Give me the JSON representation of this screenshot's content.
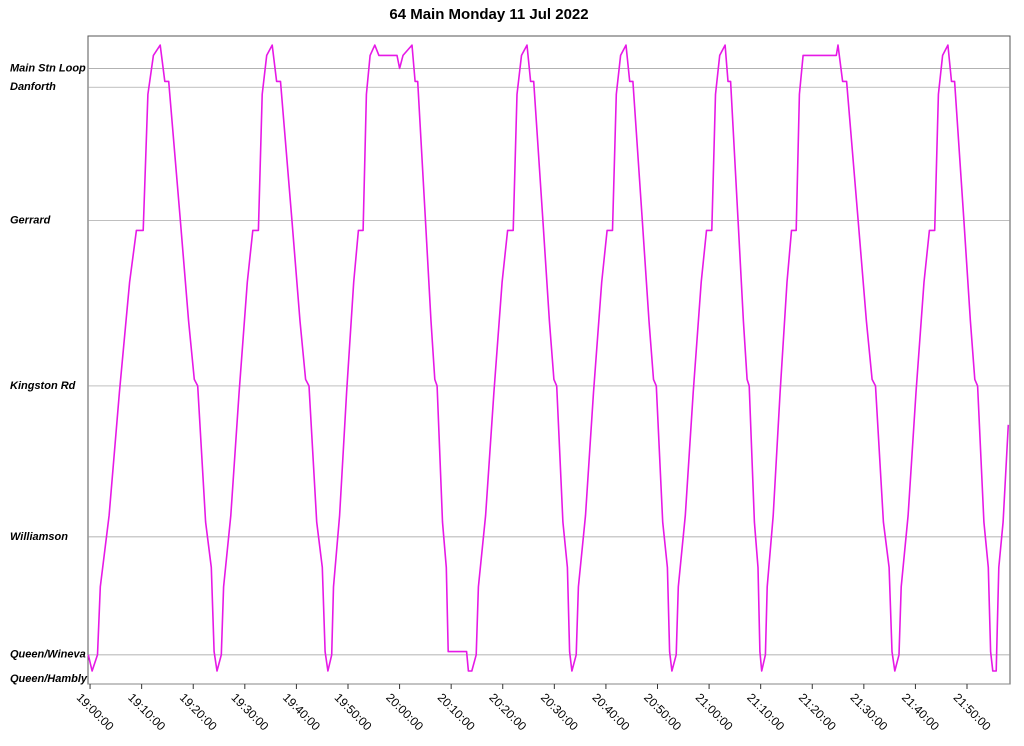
{
  "chart_data": {
    "type": "line",
    "title": "64 Main Monday 11 Jul 2022",
    "color": "#e619e6",
    "grid": true,
    "x": [
      "18:59:40",
      "19:00:24",
      "19:01:27",
      "19:01:59",
      "19:03:42",
      "19:05:41",
      "19:07:40",
      "19:08:59",
      "19:10:18",
      "19:11:13",
      "19:12:17",
      "19:13:36",
      "19:14:29",
      "19:15:15",
      "19:17:27",
      "19:19:06",
      "19:20:12",
      "19:20:52",
      "19:22:24",
      "19:23:30",
      "19:24:03",
      "19:24:36",
      "19:25:27",
      "19:25:53",
      "19:27:17",
      "19:28:53",
      "19:30:29",
      "19:31:33",
      "19:32:38",
      "19:33:22",
      "19:34:14",
      "19:35:18",
      "19:36:10",
      "19:36:55",
      "19:39:05",
      "19:40:42",
      "19:41:47",
      "19:42:26",
      "19:43:56",
      "19:45:01",
      "19:45:34",
      "19:46:06",
      "19:46:50",
      "19:47:12",
      "19:48:23",
      "19:49:44",
      "19:51:06",
      "19:52:01",
      "19:52:56",
      "19:53:34",
      "19:54:17",
      "19:55:12",
      "19:56:00",
      "19:59:30",
      "20:00:00",
      "20:00:40",
      "20:02:24",
      "20:03:00",
      "20:03:31",
      "20:04:59",
      "20:06:06",
      "20:06:50",
      "20:07:17",
      "20:08:19",
      "20:09:04",
      "20:09:26",
      "20:13:00",
      "20:13:20",
      "20:14:00",
      "20:14:51",
      "20:15:17",
      "20:16:41",
      "20:18:17",
      "20:19:53",
      "20:20:57",
      "20:22:02",
      "20:22:46",
      "20:23:38",
      "20:24:42",
      "20:25:24",
      "20:26:00",
      "20:27:45",
      "20:29:03",
      "20:29:55",
      "20:30:27",
      "20:31:40",
      "20:32:32",
      "20:32:58",
      "20:33:24",
      "20:34:14",
      "20:34:40",
      "20:36:02",
      "20:37:36",
      "20:39:11",
      "20:40:14",
      "20:41:17",
      "20:42:01",
      "20:42:51",
      "20:43:54",
      "20:44:37",
      "20:45:14",
      "20:47:01",
      "20:48:21",
      "20:49:14",
      "20:49:46",
      "20:51:01",
      "20:51:55",
      "20:52:21",
      "20:52:48",
      "20:53:37",
      "20:54:02",
      "20:55:23",
      "20:56:55",
      "20:58:28",
      "20:59:30",
      "21:00:32",
      "21:01:15",
      "21:02:04",
      "21:03:06",
      "21:03:40",
      "21:04:10",
      "21:05:35",
      "21:06:39",
      "21:07:22",
      "21:07:47",
      "21:08:47",
      "21:09:29",
      "21:09:51",
      "21:10:12",
      "21:10:55",
      "21:11:16",
      "21:12:26",
      "21:13:46",
      "21:15:06",
      "21:15:59",
      "21:16:53",
      "21:17:30",
      "21:18:13",
      "21:19:06",
      "21:24:40",
      "21:25:00",
      "21:25:53",
      "21:26:39",
      "21:28:51",
      "21:30:30",
      "21:31:36",
      "21:32:16",
      "21:33:48",
      "21:34:54",
      "21:35:27",
      "21:36:00",
      "21:36:49",
      "21:37:14",
      "21:38:35",
      "21:40:07",
      "21:41:40",
      "21:42:42",
      "21:43:44",
      "21:44:27",
      "21:45:16",
      "21:46:18",
      "21:47:00",
      "21:47:36",
      "21:49:21",
      "21:50:39",
      "21:51:31",
      "21:52:03",
      "21:53:16",
      "21:54:08",
      "21:54:34",
      "21:55:00",
      "21:55:40",
      "21:56:10",
      "21:57:00",
      "21:58:00"
    ],
    "values": [
      0.45,
      0.2,
      0.45,
      1.5,
      2.6,
      4.5,
      6.2,
      7.0,
      7.0,
      9.1,
      9.7,
      9.86,
      9.3,
      9.3,
      7.2,
      5.6,
      4.7,
      4.6,
      2.5,
      1.8,
      0.5,
      0.2,
      0.45,
      1.5,
      2.6,
      4.5,
      6.2,
      7.0,
      7.0,
      9.1,
      9.7,
      9.86,
      9.3,
      9.3,
      7.2,
      5.6,
      4.7,
      4.6,
      2.5,
      1.8,
      0.5,
      0.2,
      0.45,
      1.5,
      2.6,
      4.5,
      6.2,
      7.0,
      7.0,
      9.1,
      9.7,
      9.86,
      9.7,
      9.7,
      9.5,
      9.7,
      9.86,
      9.3,
      9.3,
      7.2,
      5.6,
      4.7,
      4.6,
      2.5,
      1.8,
      0.5,
      0.5,
      0.2,
      0.2,
      0.45,
      1.5,
      2.6,
      4.5,
      6.2,
      7.0,
      7.0,
      9.1,
      9.7,
      9.86,
      9.3,
      9.3,
      7.2,
      5.6,
      4.7,
      4.6,
      2.5,
      1.8,
      0.5,
      0.2,
      0.45,
      1.5,
      2.6,
      4.5,
      6.2,
      7.0,
      7.0,
      9.1,
      9.7,
      9.86,
      9.3,
      9.3,
      7.2,
      5.6,
      4.7,
      4.6,
      2.5,
      1.8,
      0.5,
      0.2,
      0.45,
      1.5,
      2.6,
      4.5,
      6.2,
      7.0,
      7.0,
      9.1,
      9.7,
      9.86,
      9.3,
      9.3,
      7.2,
      5.6,
      4.7,
      4.6,
      2.5,
      1.8,
      0.5,
      0.2,
      0.45,
      1.5,
      2.6,
      4.5,
      6.2,
      7.0,
      7.0,
      9.1,
      9.7,
      9.7,
      9.7,
      9.86,
      9.3,
      9.3,
      7.2,
      5.6,
      4.7,
      4.6,
      2.5,
      1.8,
      0.5,
      0.2,
      0.45,
      1.5,
      2.6,
      4.5,
      6.2,
      7.0,
      7.0,
      9.1,
      9.7,
      9.86,
      9.3,
      9.3,
      7.2,
      5.6,
      4.7,
      4.6,
      2.5,
      1.8,
      0.5,
      0.2,
      0.2,
      1.8,
      2.5,
      4.0
    ],
    "xlim": [
      "18:59:36",
      "21:58:20"
    ],
    "xticks": [
      "19:00:00",
      "19:10:00",
      "19:20:00",
      "19:30:00",
      "19:40:00",
      "19:50:00",
      "20:00:00",
      "20:10:00",
      "20:20:00",
      "20:30:00",
      "20:40:00",
      "20:50:00",
      "21:00:00",
      "21:10:00",
      "21:20:00",
      "21:30:00",
      "21:40:00",
      "21:50:00"
    ],
    "ylim": [
      0,
      10
    ],
    "yticks": [
      {
        "value": 0,
        "label": "Queen/Hambly"
      },
      {
        "value": 0.45,
        "label": "Queen/Wineva"
      },
      {
        "value": 2.27,
        "label": "Williamson"
      },
      {
        "value": 4.6,
        "label": "Kingston Rd"
      },
      {
        "value": 7.15,
        "label": "Gerrard"
      },
      {
        "value": 9.21,
        "label": "Danforth"
      },
      {
        "value": 9.5,
        "label": "Main Stn Loop"
      }
    ]
  }
}
